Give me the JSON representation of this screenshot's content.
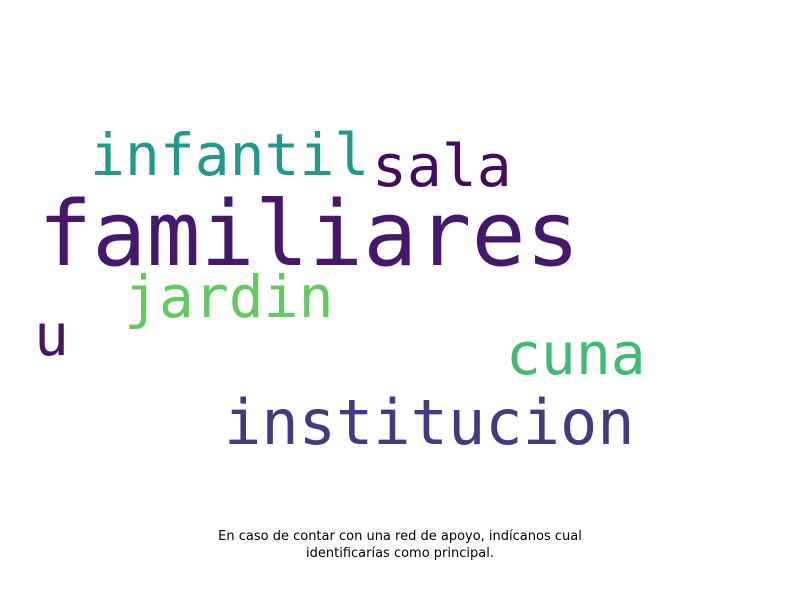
{
  "wordcloud": {
    "words": [
      {
        "id": "familiares",
        "text": "familiares",
        "color": "#46186d"
      },
      {
        "id": "infantil",
        "text": "infantil",
        "color": "#21998b"
      },
      {
        "id": "sala",
        "text": "sala",
        "color": "#460b5d"
      },
      {
        "id": "jardin",
        "text": "jardin",
        "color": "#64c963"
      },
      {
        "id": "u",
        "text": "u",
        "color": "#47165f"
      },
      {
        "id": "cuna",
        "text": "cuna",
        "color": "#41bb73"
      },
      {
        "id": "institucion",
        "text": "institucion",
        "color": "#433b7f"
      }
    ]
  },
  "caption": {
    "line1": "En caso de contar con una red de apoyo, indícanos cual",
    "line2": "identificarías como principal."
  }
}
